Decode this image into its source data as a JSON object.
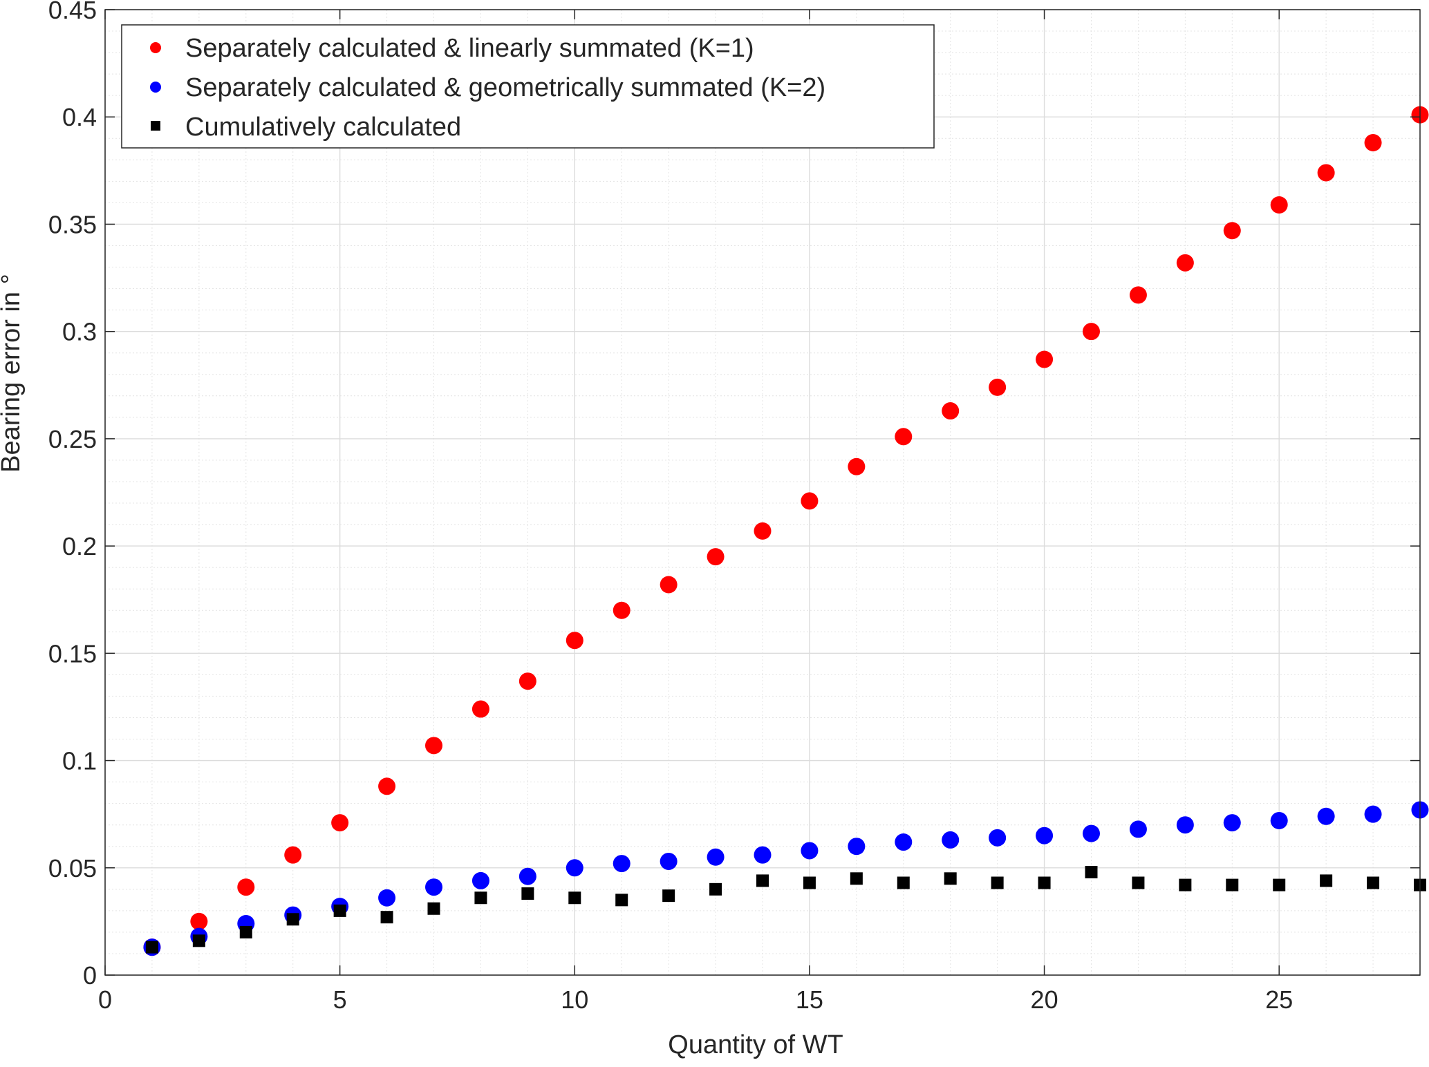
{
  "chart_data": {
    "type": "scatter",
    "title": "",
    "xlabel": "Quantity of WT",
    "ylabel": "Bearing error in °",
    "xlim": [
      0,
      28
    ],
    "ylim": [
      0,
      0.45
    ],
    "xticks": [
      0,
      5,
      10,
      15,
      20,
      25
    ],
    "yticks": [
      0,
      0.05,
      0.1,
      0.15,
      0.2,
      0.25,
      0.3,
      0.35,
      0.4,
      0.45
    ],
    "xtick_labels": [
      "0",
      "5",
      "10",
      "15",
      "20",
      "25"
    ],
    "ytick_labels": [
      "0",
      "0.05",
      "0.1",
      "0.15",
      "0.2",
      "0.25",
      "0.3",
      "0.35",
      "0.4",
      "0.45"
    ],
    "grid": true,
    "minor_grid": true,
    "legend_position": "top-left",
    "x": [
      1,
      2,
      3,
      4,
      5,
      6,
      7,
      8,
      9,
      10,
      11,
      12,
      13,
      14,
      15,
      16,
      17,
      18,
      19,
      20,
      21,
      22,
      23,
      24,
      25,
      26,
      27,
      28
    ],
    "series": [
      {
        "name": "Separately calculated & linearly summated (K=1)",
        "marker": "circle",
        "color": "#ff0000",
        "values": [
          0.013,
          0.025,
          0.041,
          0.056,
          0.071,
          0.088,
          0.107,
          0.124,
          0.137,
          0.156,
          0.17,
          0.182,
          0.195,
          0.207,
          0.221,
          0.237,
          0.251,
          0.263,
          0.274,
          0.287,
          0.3,
          0.317,
          0.332,
          0.347,
          0.359,
          0.374,
          0.388,
          0.401
        ]
      },
      {
        "name": "Separately calculated & geometrically summated (K=2)",
        "marker": "circle",
        "color": "#0000ff",
        "values": [
          0.013,
          0.018,
          0.024,
          0.028,
          0.032,
          0.036,
          0.041,
          0.044,
          0.046,
          0.05,
          0.052,
          0.053,
          0.055,
          0.056,
          0.058,
          0.06,
          0.062,
          0.063,
          0.064,
          0.065,
          0.066,
          0.068,
          0.07,
          0.071,
          0.072,
          0.074,
          0.075,
          0.077
        ]
      },
      {
        "name": "Cumulatively calculated",
        "marker": "square",
        "color": "#000000",
        "values": [
          0.013,
          0.016,
          0.02,
          0.026,
          0.03,
          0.027,
          0.031,
          0.036,
          0.038,
          0.036,
          0.035,
          0.037,
          0.04,
          0.044,
          0.043,
          0.045,
          0.043,
          0.045,
          0.043,
          0.043,
          0.048,
          0.043,
          0.042,
          0.042,
          0.042,
          0.044,
          0.043,
          0.042
        ]
      }
    ]
  }
}
